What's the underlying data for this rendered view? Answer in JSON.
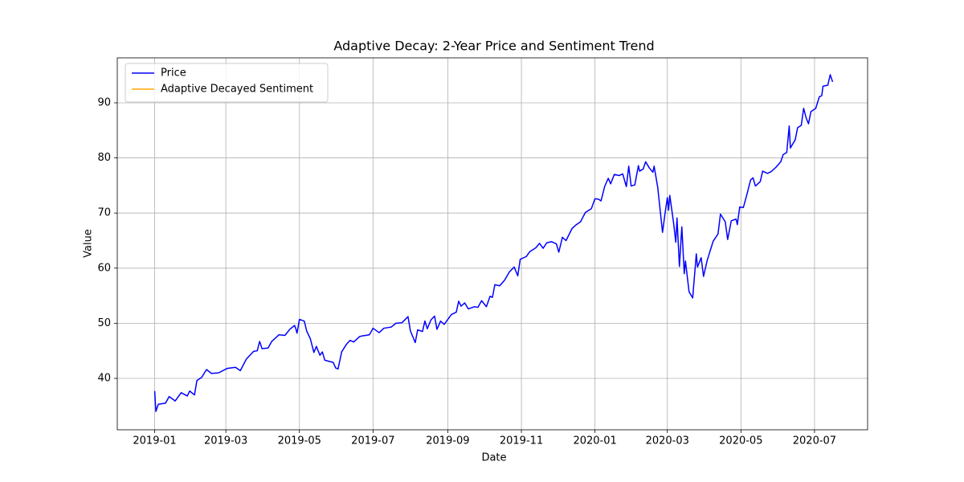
{
  "chart_data": {
    "type": "line",
    "title": "Adaptive Decay: 2-Year Price and Sentiment Trend",
    "x_label": "Date",
    "y_label": "Value",
    "x": [
      0,
      1,
      3,
      9,
      12,
      17,
      22,
      27,
      29,
      33,
      35,
      39,
      43,
      47,
      53,
      60,
      67,
      71,
      76,
      82,
      85,
      87,
      89,
      94,
      97,
      103,
      108,
      112,
      116,
      117,
      118,
      120,
      124,
      126,
      129,
      132,
      134,
      137,
      139,
      141,
      148,
      150,
      152,
      155,
      159,
      162,
      165,
      170,
      172,
      175,
      178,
      181,
      186,
      190,
      196,
      200,
      205,
      210,
      212,
      216,
      218,
      222,
      224,
      226,
      229,
      232,
      234,
      237,
      240,
      242,
      246,
      250,
      252,
      254,
      257,
      260,
      265,
      268,
      271,
      275,
      278,
      280,
      282,
      286,
      290,
      294,
      298,
      301,
      303,
      308,
      311,
      316,
      319,
      322,
      325,
      329,
      333,
      335,
      338,
      341,
      346,
      349,
      353,
      357,
      362,
      365,
      368,
      370,
      373,
      376,
      378,
      381,
      385,
      388,
      391,
      393,
      395,
      398,
      401,
      402,
      405,
      407,
      410,
      413,
      414,
      417,
      419,
      421,
      423,
      425,
      426,
      427,
      430,
      432,
      433,
      435,
      437,
      439,
      440,
      443,
      446,
      449,
      450,
      453,
      455,
      458,
      461,
      463,
      467,
      469,
      473,
      475,
      478,
      482,
      483,
      485,
      488,
      491,
      494,
      496,
      498,
      502,
      504,
      508,
      511,
      515,
      519,
      521,
      524,
      526,
      527,
      531,
      533,
      536,
      538,
      540,
      542,
      544,
      548,
      551,
      553,
      554,
      558,
      560,
      562
    ],
    "series": [
      {
        "name": "Price",
        "color": "#0000ff",
        "values": [
          37.7,
          34,
          35.3,
          35.5,
          36.7,
          35.9,
          37.4,
          36.8,
          37.7,
          37.0,
          39.6,
          40.2,
          41.6,
          40.9,
          41.0,
          41.8,
          42.0,
          41.4,
          43.5,
          44.9,
          45.0,
          46.7,
          45.4,
          45.5,
          46.7,
          47.9,
          47.8,
          48.9,
          49.6,
          49.0,
          48.2,
          50.7,
          50.4,
          48.6,
          47.2,
          44.7,
          45.8,
          44.2,
          44.8,
          43.3,
          42.9,
          41.9,
          41.7,
          44.8,
          46.2,
          46.9,
          46.6,
          47.6,
          47.7,
          47.8,
          47.9,
          49.1,
          48.3,
          49.1,
          49.3,
          50.0,
          50.1,
          51.2,
          48.6,
          46.5,
          48.8,
          48.5,
          50.4,
          49.0,
          50.6,
          51.3,
          48.9,
          50.4,
          49.8,
          50.4,
          51.6,
          52.0,
          54.0,
          53.1,
          53.7,
          52.6,
          53.0,
          52.9,
          54.1,
          53.0,
          54.9,
          54.7,
          57.0,
          56.8,
          57.8,
          59.3,
          60.2,
          58.6,
          61.6,
          62.1,
          63.0,
          63.7,
          64.5,
          63.6,
          64.6,
          64.8,
          64.4,
          62.9,
          65.6,
          65.0,
          67.2,
          67.8,
          68.4,
          70.1,
          70.8,
          72.6,
          72.5,
          72.2,
          74.8,
          76.3,
          75.3,
          77.0,
          76.8,
          77.1,
          74.8,
          78.5,
          74.9,
          75.1,
          78.6,
          77.6,
          78.0,
          79.3,
          78.2,
          77.4,
          78.5,
          74.7,
          70.6,
          66.5,
          69.8,
          72.8,
          70.5,
          73.2,
          68.5,
          64.7,
          69.1,
          60.3,
          67.5,
          59.0,
          61.3,
          55.7,
          54.6,
          62.6,
          60.2,
          61.9,
          58.5,
          61.4,
          63.5,
          64.9,
          66.2,
          69.8,
          68.4,
          65.2,
          68.6,
          68.9,
          67.9,
          71.1,
          71.0,
          73.4,
          76.0,
          76.4,
          74.9,
          75.7,
          77.6,
          77.2,
          77.5,
          78.3,
          79.3,
          80.6,
          81.0,
          85.8,
          81.8,
          83.3,
          85.5,
          85.9,
          89.0,
          87.3,
          86.2,
          88.4,
          89.0,
          91.1,
          91.3,
          93.0,
          93.2,
          95.1,
          93.8
        ]
      },
      {
        "name": "Adaptive Decayed Sentiment",
        "color": "#ffa500"
      }
    ],
    "xlim": [
      -31,
      591
    ],
    "xticks": [
      {
        "value": 0,
        "label": "2019-01"
      },
      {
        "value": 59,
        "label": "2019-03"
      },
      {
        "value": 120,
        "label": "2019-05"
      },
      {
        "value": 181,
        "label": "2019-07"
      },
      {
        "value": 243,
        "label": "2019-09"
      },
      {
        "value": 304,
        "label": "2019-11"
      },
      {
        "value": 365,
        "label": "2020-01"
      },
      {
        "value": 425,
        "label": "2020-03"
      },
      {
        "value": 486,
        "label": "2020-05"
      },
      {
        "value": 547,
        "label": "2020-07"
      }
    ],
    "ylim": [
      30.67,
      98.16
    ],
    "yticks": [
      40,
      50,
      60,
      70,
      80,
      90
    ],
    "grid": true,
    "legend": "upper-left"
  }
}
